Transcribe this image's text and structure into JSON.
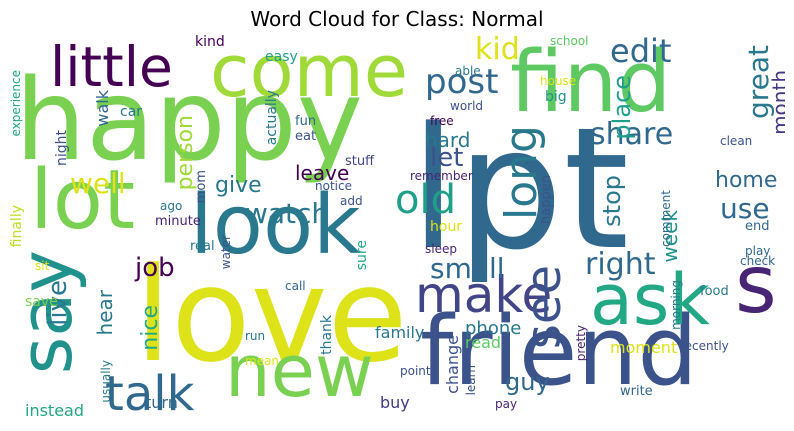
{
  "title": "Word Cloud for Class: Normal",
  "words": [
    {
      "text": "happy",
      "color": "#7ad151"
    },
    {
      "text": "lpt",
      "color": "#31688e"
    },
    {
      "text": "love",
      "color": "#dde318"
    },
    {
      "text": "find",
      "color": "#5ec962"
    },
    {
      "text": "look",
      "color": "#2a788e"
    },
    {
      "text": "friend",
      "color": "#3b528b"
    },
    {
      "text": "come",
      "color": "#a0da39"
    },
    {
      "text": "new",
      "color": "#7ad151"
    },
    {
      "text": "say",
      "color": "#21918c"
    },
    {
      "text": "lot",
      "color": "#7ad151"
    },
    {
      "text": "ask",
      "color": "#22a884"
    },
    {
      "text": "s",
      "color": "#482475"
    },
    {
      "text": "little",
      "color": "#440154"
    },
    {
      "text": "make",
      "color": "#414487"
    },
    {
      "text": "long",
      "color": "#2a788e"
    },
    {
      "text": "see",
      "color": "#3b528b"
    },
    {
      "text": "talk",
      "color": "#31688e"
    },
    {
      "text": "old",
      "color": "#1f9e89"
    },
    {
      "text": "post",
      "color": "#31688e"
    },
    {
      "text": "watch",
      "color": "#2a788e"
    },
    {
      "text": "edit",
      "color": "#31688e"
    },
    {
      "text": "right",
      "color": "#31688e"
    },
    {
      "text": "well",
      "color": "#dde318"
    },
    {
      "text": "small",
      "color": "#31688e"
    },
    {
      "text": "share",
      "color": "#31688e"
    },
    {
      "text": "let",
      "color": "#3b528b"
    },
    {
      "text": "job",
      "color": "#440154"
    },
    {
      "text": "kid",
      "color": "#dde318"
    },
    {
      "text": "great",
      "color": "#2a788e"
    },
    {
      "text": "use",
      "color": "#31688e"
    },
    {
      "text": "live",
      "color": "#2a788e"
    },
    {
      "text": "place",
      "color": "#1f9e89"
    },
    {
      "text": "stop",
      "color": "#2a788e"
    },
    {
      "text": "home",
      "color": "#31688e"
    },
    {
      "text": "guy",
      "color": "#31688e"
    },
    {
      "text": "leave",
      "color": "#440154"
    },
    {
      "text": "give",
      "color": "#2a788e"
    },
    {
      "text": "week",
      "color": "#21918c"
    },
    {
      "text": "person",
      "color": "#a0da39"
    },
    {
      "text": "hard",
      "color": "#2a788e"
    },
    {
      "text": "month",
      "color": "#443983"
    },
    {
      "text": "nice",
      "color": "#22a884"
    },
    {
      "text": "hear",
      "color": "#2a788e"
    },
    {
      "text": "phone",
      "color": "#2a788e"
    },
    {
      "text": "family",
      "color": "#2a788e"
    },
    {
      "text": "read",
      "color": "#5ec962"
    },
    {
      "text": "moment",
      "color": "#dde318"
    },
    {
      "text": "change",
      "color": "#3b528b"
    },
    {
      "text": "buy",
      "color": "#443983"
    },
    {
      "text": "turn",
      "color": "#31688e"
    },
    {
      "text": "instead",
      "color": "#22a884"
    },
    {
      "text": "save",
      "color": "#7ad151"
    },
    {
      "text": "walk",
      "color": "#31688e"
    },
    {
      "text": "kind",
      "color": "#440154"
    },
    {
      "text": "easy",
      "color": "#1f9e89"
    },
    {
      "text": "car",
      "color": "#2a788e"
    },
    {
      "text": "fun",
      "color": "#31688e"
    },
    {
      "text": "eat",
      "color": "#3b528b"
    },
    {
      "text": "actually",
      "color": "#2a788e"
    },
    {
      "text": "night",
      "color": "#3b528b"
    },
    {
      "text": "finally",
      "color": "#bddf26"
    },
    {
      "text": "experience",
      "color": "#22a884"
    },
    {
      "text": "mom",
      "color": "#3b528b"
    },
    {
      "text": "stuff",
      "color": "#414487"
    },
    {
      "text": "notice",
      "color": "#3b528b"
    },
    {
      "text": "add",
      "color": "#3b528b"
    },
    {
      "text": "ago",
      "color": "#2a788e"
    },
    {
      "text": "minute",
      "color": "#482475"
    },
    {
      "text": "real",
      "color": "#2a788e"
    },
    {
      "text": "water",
      "color": "#3b528b"
    },
    {
      "text": "sure",
      "color": "#22a884"
    },
    {
      "text": "hour",
      "color": "#dde318"
    },
    {
      "text": "happen",
      "color": "#3b528b"
    },
    {
      "text": "sleep",
      "color": "#482475"
    },
    {
      "text": "remember",
      "color": "#482475"
    },
    {
      "text": "free",
      "color": "#440154"
    },
    {
      "text": "world",
      "color": "#3b528b"
    },
    {
      "text": "big",
      "color": "#21918c"
    },
    {
      "text": "able",
      "color": "#2a788e"
    },
    {
      "text": "house",
      "color": "#dde318"
    },
    {
      "text": "school",
      "color": "#5ec962"
    },
    {
      "text": "clean",
      "color": "#3b528b"
    },
    {
      "text": "check",
      "color": "#31688e"
    },
    {
      "text": "comment",
      "color": "#31688e"
    },
    {
      "text": "end",
      "color": "#31688e"
    },
    {
      "text": "play",
      "color": "#31688e"
    },
    {
      "text": "food",
      "color": "#2a788e"
    },
    {
      "text": "morning",
      "color": "#2a788e"
    },
    {
      "text": "recently",
      "color": "#3b528b"
    },
    {
      "text": "pretty",
      "color": "#482475"
    },
    {
      "text": "write",
      "color": "#31688e"
    },
    {
      "text": "pay",
      "color": "#482475"
    },
    {
      "text": "learn",
      "color": "#3b528b"
    },
    {
      "text": "point",
      "color": "#3b528b"
    },
    {
      "text": "thank",
      "color": "#2a788e"
    },
    {
      "text": "run",
      "color": "#2a788e"
    },
    {
      "text": "mean",
      "color": "#dde318"
    },
    {
      "text": "call",
      "color": "#31688e"
    },
    {
      "text": "usually",
      "color": "#2a788e"
    },
    {
      "text": "sit",
      "color": "#dde318"
    }
  ]
}
